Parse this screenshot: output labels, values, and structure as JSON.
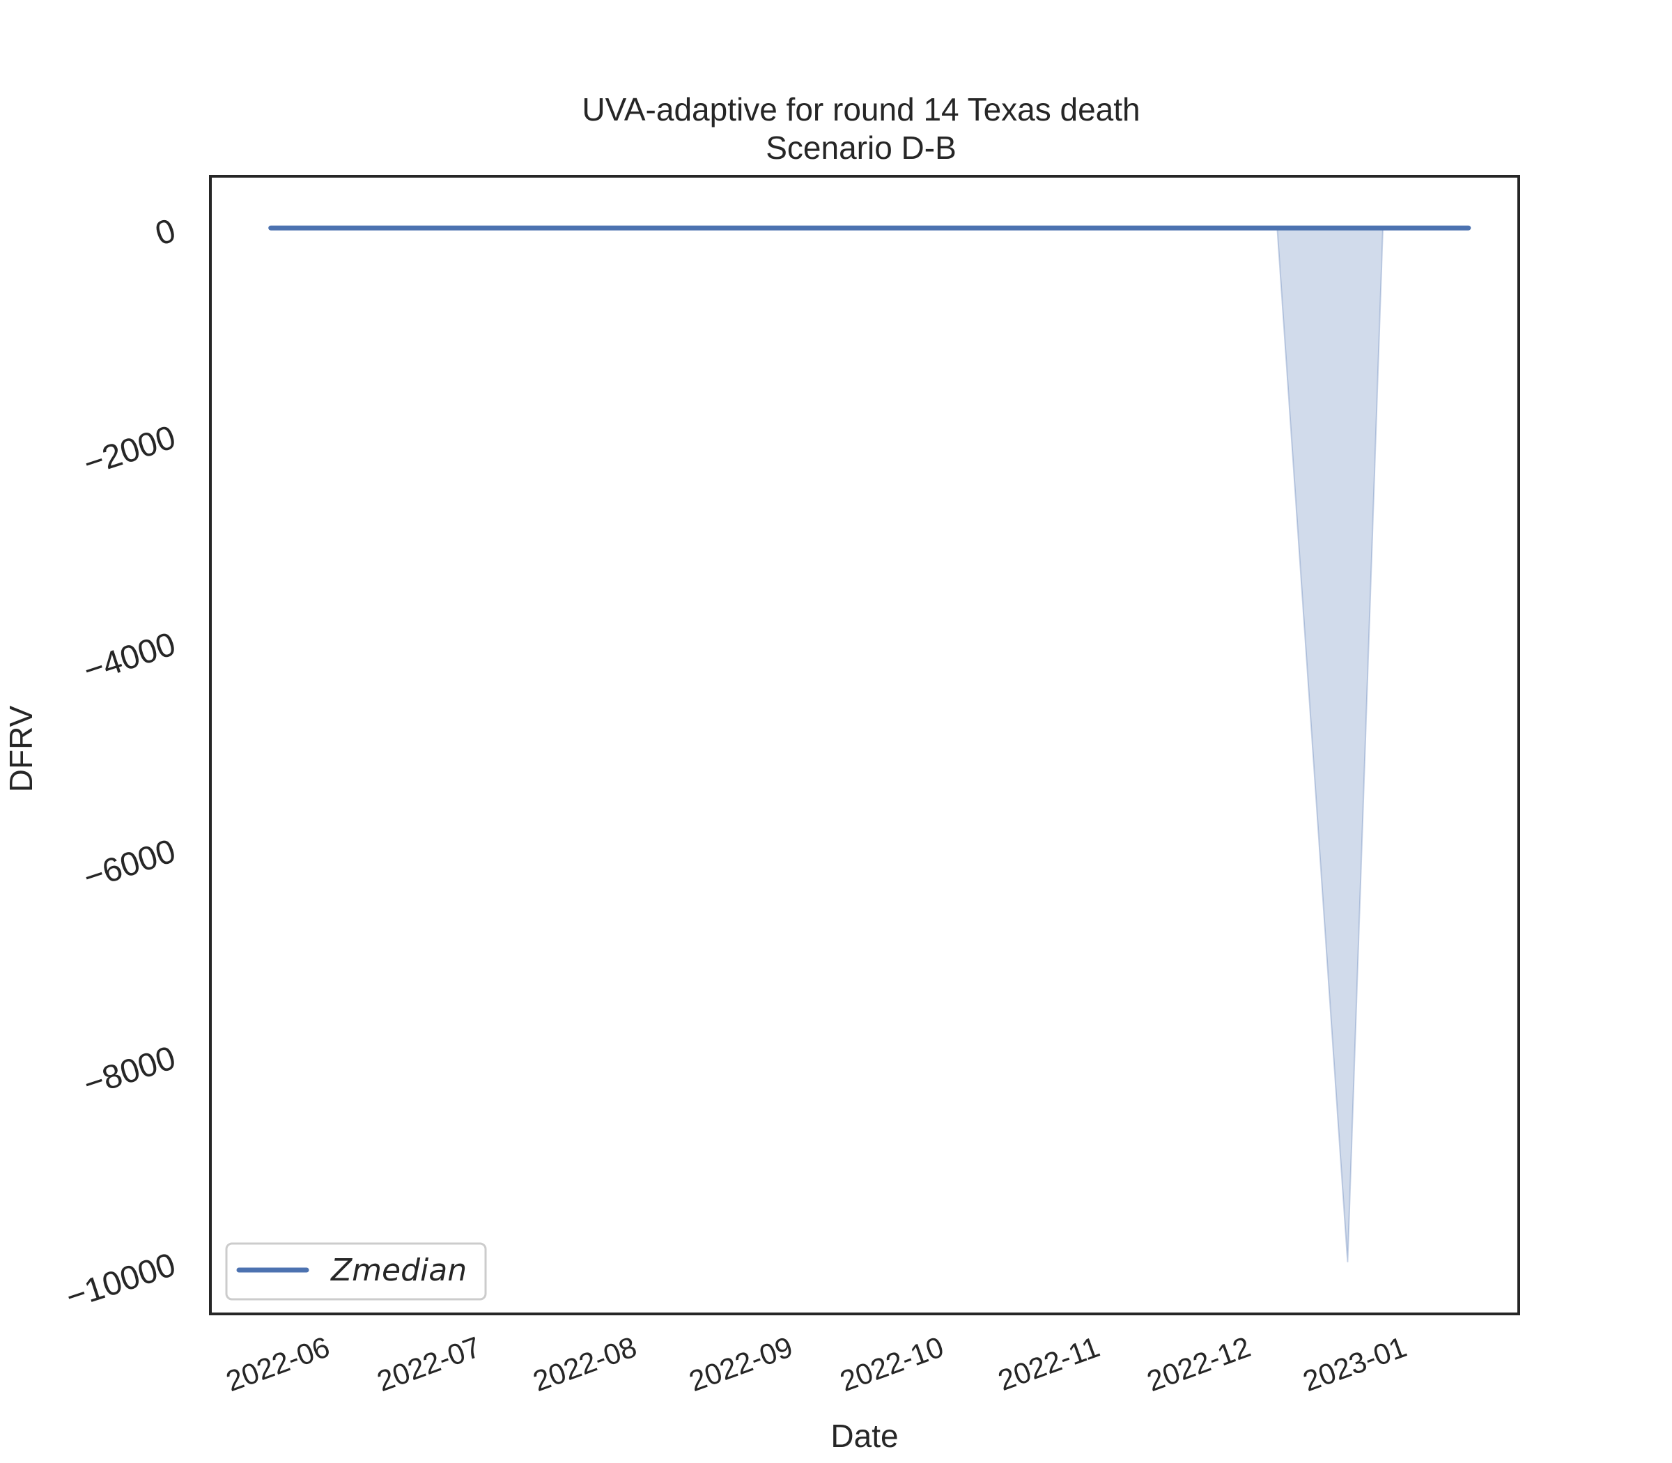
{
  "chart_data": {
    "type": "line",
    "title": "UVA-adaptive for round 14 Texas death",
    "subtitle": "Scenario D-B",
    "xlabel": "Date",
    "ylabel": "DFRV",
    "x_ticks": [
      "2022-06",
      "2022-07",
      "2022-08",
      "2022-09",
      "2022-10",
      "2022-11",
      "2022-12",
      "2023-01"
    ],
    "y_ticks": [
      "0",
      "−2000",
      "−4000",
      "−6000",
      "−8000",
      "−10000"
    ],
    "ylim": [
      -10500,
      500
    ],
    "xlim": [
      "2022-05-09",
      "2023-01-24"
    ],
    "grid": false,
    "legend_position": "lower-left",
    "series": [
      {
        "name": "Zmedian",
        "color": "#4c72b0",
        "x": [
          "2022-05-21",
          "2022-05-28",
          "2022-06-04",
          "2022-06-11",
          "2022-06-18",
          "2022-06-25",
          "2022-07-02",
          "2022-07-09",
          "2022-07-16",
          "2022-07-23",
          "2022-07-30",
          "2022-08-06",
          "2022-08-13",
          "2022-08-20",
          "2022-08-27",
          "2022-09-03",
          "2022-09-10",
          "2022-09-17",
          "2022-09-24",
          "2022-10-01",
          "2022-10-08",
          "2022-10-15",
          "2022-10-22",
          "2022-10-29",
          "2022-11-05",
          "2022-11-12",
          "2022-11-19",
          "2022-11-26",
          "2022-12-03",
          "2022-12-10",
          "2022-12-17",
          "2022-12-24",
          "2022-12-31",
          "2023-01-07",
          "2023-01-14"
        ],
        "y": [
          0,
          0,
          0,
          0,
          0,
          0,
          0,
          0,
          0,
          0,
          0,
          0,
          0,
          0,
          0,
          0,
          0,
          0,
          0,
          0,
          0,
          0,
          0,
          0,
          0,
          0,
          0,
          0,
          0,
          0,
          0,
          0,
          0,
          0,
          0
        ]
      }
    ],
    "band": {
      "color": "#4c72b0",
      "x": [
        "2022-12-07",
        "2022-12-14",
        "2022-12-21",
        "2022-12-28"
      ],
      "lower": [
        0,
        -5000,
        -10000,
        0
      ],
      "upper": [
        0,
        0,
        0,
        0
      ]
    }
  }
}
